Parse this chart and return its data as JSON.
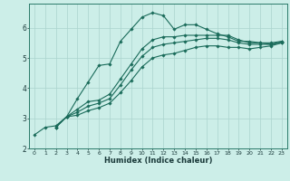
{
  "xlabel": "Humidex (Indice chaleur)",
  "ylabel": "",
  "bg_color": "#cceee8",
  "grid_color": "#aad4ce",
  "line_color": "#1a6b5a",
  "xlim": [
    -0.5,
    23.5
  ],
  "ylim": [
    2,
    6.8
  ],
  "yticks": [
    2,
    3,
    4,
    5,
    6
  ],
  "xticks": [
    0,
    1,
    2,
    3,
    4,
    5,
    6,
    7,
    8,
    9,
    10,
    11,
    12,
    13,
    14,
    15,
    16,
    17,
    18,
    19,
    20,
    21,
    22,
    23
  ],
  "series1_x": [
    0,
    1,
    2,
    3,
    4,
    5,
    6,
    7,
    8,
    9,
    10,
    11,
    12,
    13,
    14,
    15,
    16,
    17,
    18,
    19,
    20,
    21,
    22,
    23
  ],
  "series1_y": [
    2.45,
    2.7,
    2.75,
    3.05,
    3.65,
    4.2,
    4.75,
    4.8,
    5.55,
    5.95,
    6.35,
    6.5,
    6.4,
    5.95,
    6.1,
    6.1,
    5.95,
    5.8,
    5.7,
    5.55,
    5.55,
    5.5,
    5.45,
    5.55
  ],
  "series2_x": [
    2,
    3,
    4,
    5,
    6,
    7,
    8,
    9,
    10,
    11,
    12,
    13,
    14,
    15,
    16,
    17,
    18,
    19,
    20,
    21,
    22,
    23
  ],
  "series2_y": [
    2.7,
    3.05,
    3.3,
    3.55,
    3.6,
    3.8,
    4.3,
    4.8,
    5.3,
    5.6,
    5.7,
    5.7,
    5.75,
    5.75,
    5.75,
    5.75,
    5.75,
    5.6,
    5.5,
    5.5,
    5.5,
    5.55
  ],
  "series3_x": [
    2,
    3,
    4,
    5,
    6,
    7,
    8,
    9,
    10,
    11,
    12,
    13,
    14,
    15,
    16,
    17,
    18,
    19,
    20,
    21,
    22,
    23
  ],
  "series3_y": [
    2.7,
    3.05,
    3.2,
    3.4,
    3.5,
    3.65,
    4.1,
    4.6,
    5.05,
    5.35,
    5.45,
    5.5,
    5.55,
    5.6,
    5.65,
    5.65,
    5.6,
    5.5,
    5.45,
    5.45,
    5.45,
    5.5
  ],
  "series4_x": [
    2,
    3,
    4,
    5,
    6,
    7,
    8,
    9,
    10,
    11,
    12,
    13,
    14,
    15,
    16,
    17,
    18,
    19,
    20,
    21,
    22,
    23
  ],
  "series4_y": [
    2.7,
    3.05,
    3.1,
    3.25,
    3.35,
    3.5,
    3.85,
    4.25,
    4.7,
    5.0,
    5.1,
    5.15,
    5.25,
    5.35,
    5.4,
    5.4,
    5.35,
    5.35,
    5.3,
    5.35,
    5.4,
    5.5
  ]
}
